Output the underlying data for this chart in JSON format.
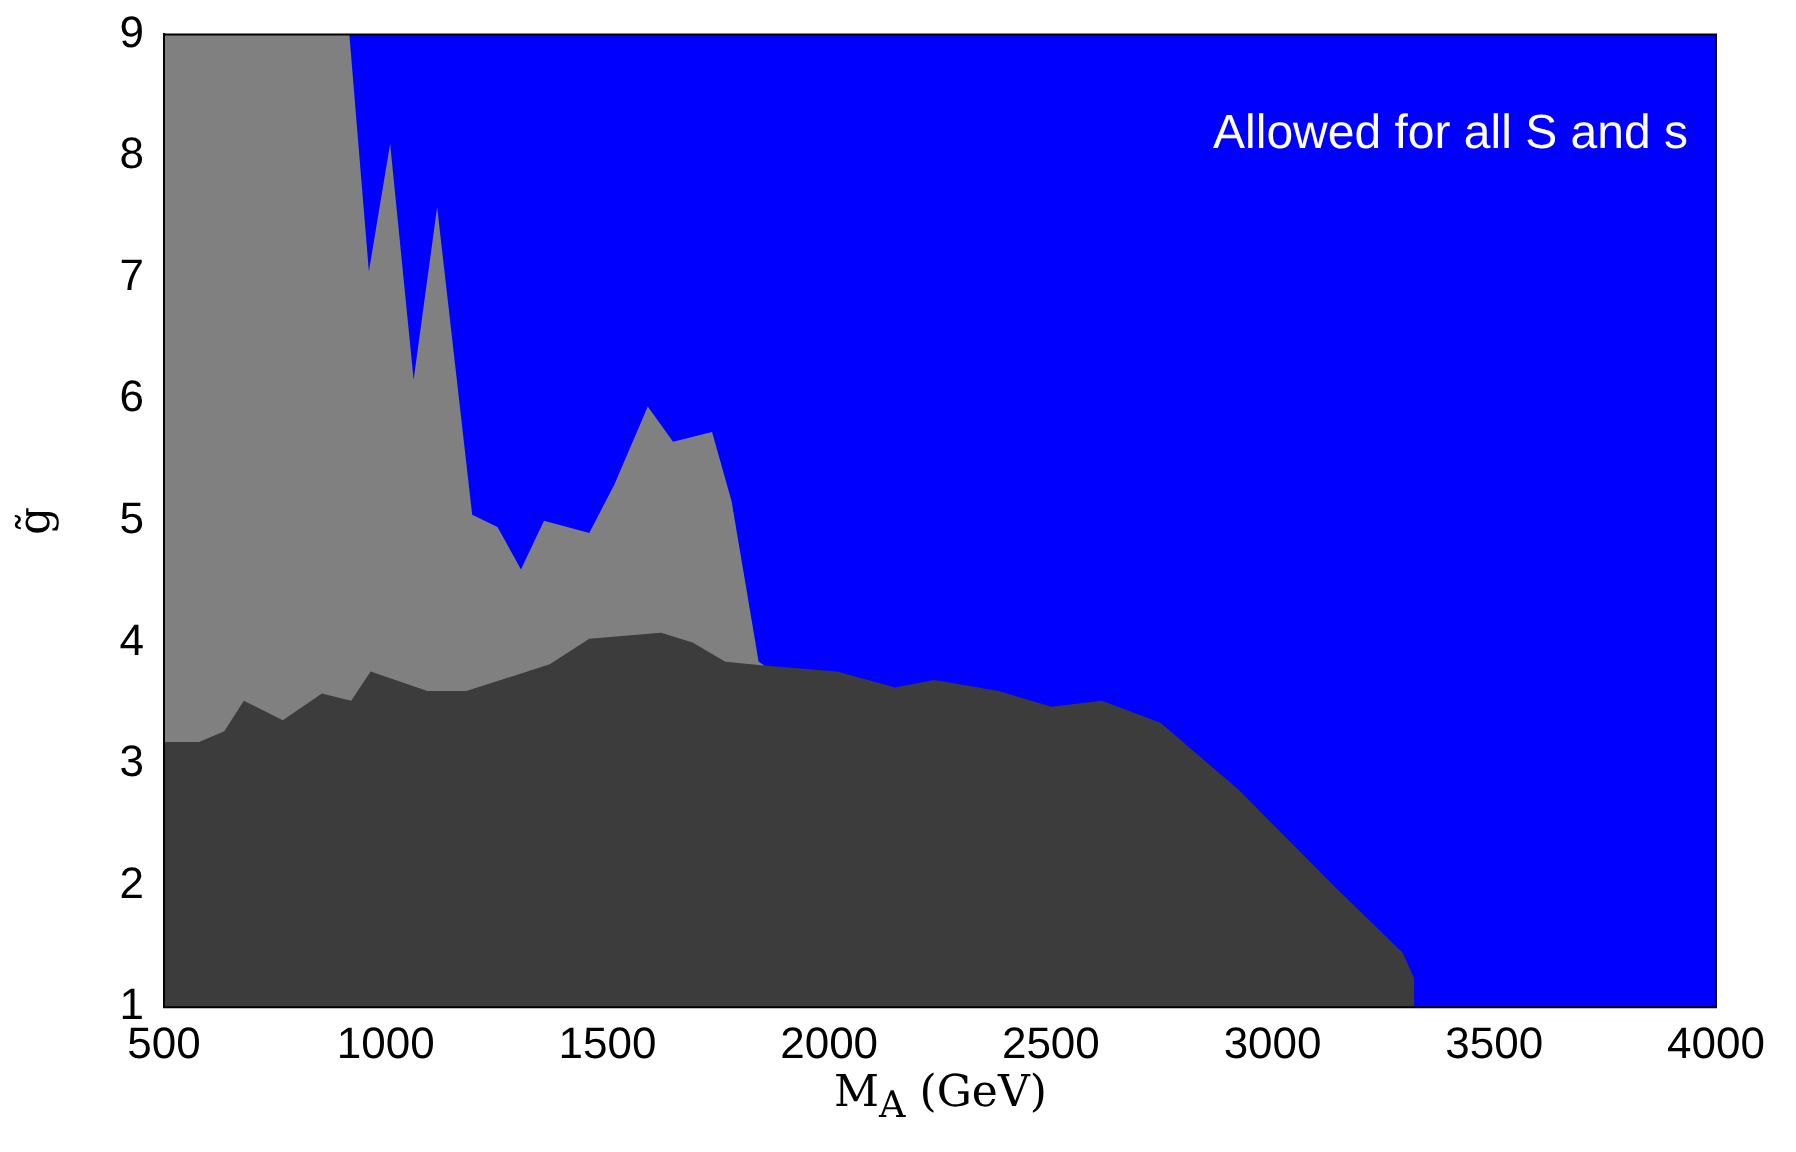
{
  "chart_data": {
    "type": "area",
    "xlabel": "M$_{A}$ (GeV)",
    "ylabel": "g̃",
    "xlim": [
      500,
      4000
    ],
    "xticks": [
      500,
      1000,
      1500,
      2000,
      2500,
      3000,
      3500,
      4000
    ],
    "ylim": [
      1,
      9
    ],
    "yticks": [
      1,
      2,
      3,
      4,
      5,
      6,
      7,
      8,
      9
    ],
    "grid": false,
    "legend": false,
    "bands": [
      {
        "axis": "y",
        "from": 1,
        "to": 9,
        "label": "Allowed for all S and s",
        "color": "#0000ff"
      }
    ],
    "series": [
      {
        "color": "#808080",
        "x": [
          500,
          918,
          962,
          1010,
          1063,
          1116,
          1195,
          1252,
          1305,
          1357,
          1459,
          1516,
          1591,
          1648,
          1736,
          1780,
          1841,
          1854
        ],
        "values": [
          9,
          9,
          7.05,
          8.1,
          6.16,
          7.58,
          5.05,
          4.95,
          4.6,
          5.0,
          4.9,
          5.3,
          5.94,
          5.65,
          5.73,
          5.16,
          3.84,
          3.81
        ]
      },
      {
        "color": "#3c3c3c",
        "x": [
          500,
          579,
          636,
          680,
          768,
          856,
          922,
          966,
          1094,
          1182,
          1370,
          1459,
          1621,
          1692,
          1766,
          1854,
          2017,
          2149,
          2237,
          2382,
          2501,
          2615,
          2747,
          2923,
          3143,
          3293,
          3319,
          3320
        ],
        "values": [
          3.18,
          3.18,
          3.27,
          3.52,
          3.36,
          3.58,
          3.52,
          3.76,
          3.6,
          3.6,
          3.82,
          4.03,
          4.08,
          4.0,
          3.84,
          3.81,
          3.76,
          3.63,
          3.69,
          3.6,
          3.47,
          3.52,
          3.34,
          2.79,
          1.98,
          1.45,
          1.24,
          1.0
        ]
      }
    ]
  }
}
